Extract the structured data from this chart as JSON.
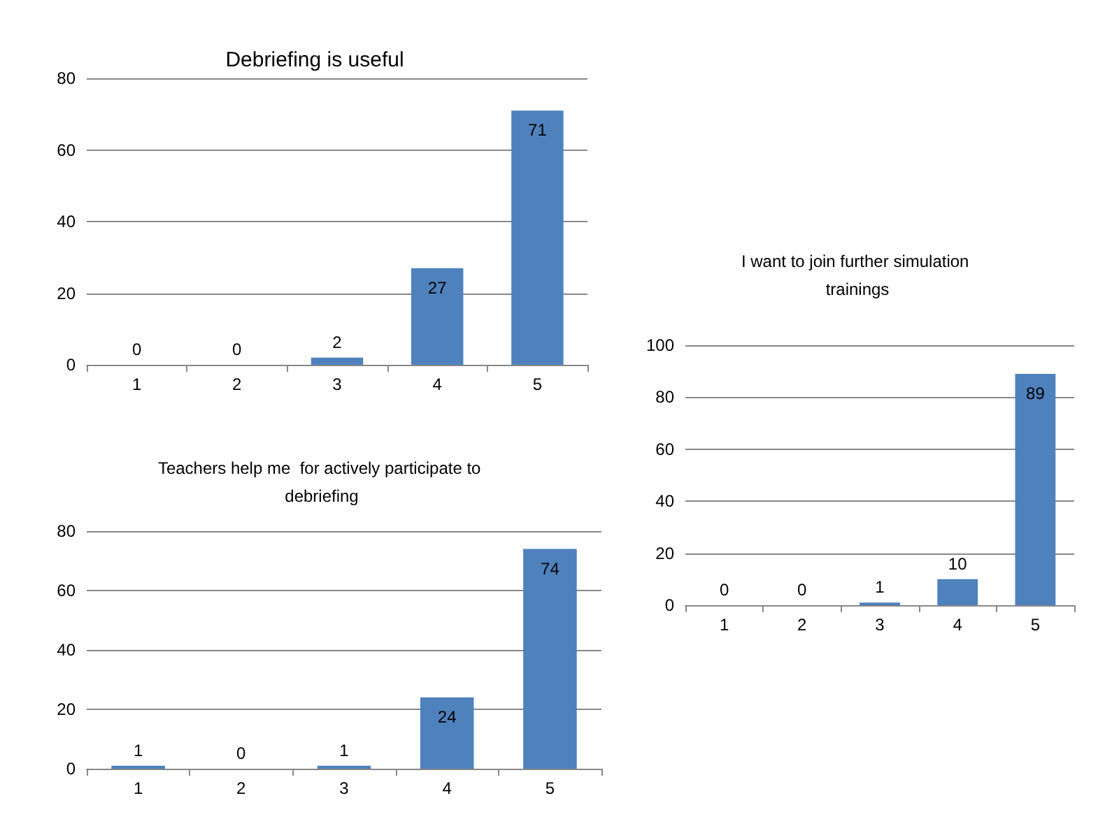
{
  "chart_data": [
    {
      "type": "bar",
      "title": "Debriefing is useful",
      "categories": [
        "1",
        "2",
        "3",
        "4",
        "5"
      ],
      "values": [
        0,
        0,
        2,
        27,
        71
      ],
      "color": "#4f81bd",
      "ylim": [
        0,
        80
      ],
      "yticks": [
        0,
        20,
        40,
        60,
        80
      ],
      "grid": "y",
      "data_labels": true
    },
    {
      "type": "bar",
      "title": "I want to join further simulation trainings",
      "categories": [
        "1",
        "2",
        "3",
        "4",
        "5"
      ],
      "values": [
        0,
        0,
        1,
        10,
        89
      ],
      "color": "#4f81bd",
      "ylim": [
        0,
        100
      ],
      "yticks": [
        0,
        20,
        40,
        60,
        80,
        100
      ],
      "grid": "y",
      "data_labels": true
    },
    {
      "type": "bar",
      "title": "Teachers help me  for actively participate to debriefing",
      "categories": [
        "1",
        "2",
        "3",
        "4",
        "5"
      ],
      "values": [
        1,
        0,
        1,
        24,
        74
      ],
      "color": "#4f81bd",
      "ylim": [
        0,
        80
      ],
      "yticks": [
        0,
        20,
        40,
        60,
        80
      ],
      "grid": "y",
      "data_labels": true
    }
  ]
}
